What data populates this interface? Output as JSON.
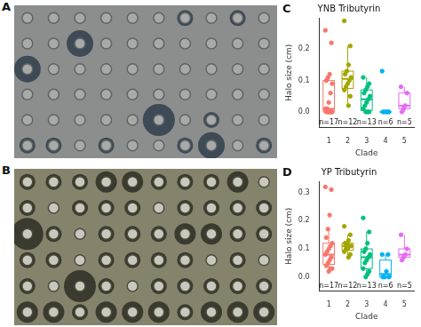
{
  "image_panels": [
    {
      "label": "A"
    },
    {
      "label": "B"
    }
  ],
  "chart_data": [
    {
      "label": "C",
      "type": "box",
      "title": "YNB Tributyrin",
      "x_label": "Clade",
      "y_label": "Halo size (cm)",
      "categories": [
        "1",
        "2",
        "3",
        "4",
        "5"
      ],
      "n_labels": [
        "n=17",
        "n=12",
        "n=13",
        "n=6",
        "n=5"
      ],
      "colors": [
        "#F8766D",
        "#A3A500",
        "#00BF7D",
        "#00B0F6",
        "#E76BF3"
      ],
      "values": [
        [
          0.26,
          0.22,
          0.12,
          0.11,
          0.1,
          0.09,
          0.06,
          0.03,
          0.01,
          0.01,
          0,
          0,
          0,
          0,
          0,
          0,
          0
        ],
        [
          0.29,
          0.21,
          0.15,
          0.13,
          0.12,
          0.11,
          0.1,
          0.09,
          0.08,
          0.07,
          0.05,
          0.02
        ],
        [
          0.11,
          0.09,
          0.08,
          0.07,
          0.06,
          0.05,
          0.04,
          0.03,
          0.02,
          0.01,
          0,
          0,
          0
        ],
        [
          0.13,
          0,
          0,
          0,
          0,
          0
        ],
        [
          0.08,
          0.06,
          0.02,
          0.01,
          0
        ]
      ],
      "box": [
        {
          "min": 0,
          "q1": 0,
          "median": 0.01,
          "q3": 0.1,
          "max": 0.12
        },
        {
          "min": 0.02,
          "q1": 0.075,
          "median": 0.105,
          "q3": 0.13,
          "max": 0.21
        },
        {
          "min": 0,
          "q1": 0.005,
          "median": 0.04,
          "q3": 0.07,
          "max": 0.11
        },
        {
          "min": 0,
          "q1": 0,
          "median": 0,
          "q3": 0,
          "max": 0
        },
        {
          "min": 0,
          "q1": 0.01,
          "median": 0.02,
          "q3": 0.06,
          "max": 0.08
        }
      ],
      "xlim": [
        0.5,
        5.5
      ],
      "ylim": [
        -0.05,
        0.3
      ],
      "yticks": [
        {
          "value": 0,
          "label": "0.0"
        },
        {
          "value": 0.1,
          "label": "0.1"
        },
        {
          "value": 0.2,
          "label": "0.2"
        }
      ],
      "grid": false
    },
    {
      "label": "D",
      "type": "box",
      "title": "YP Tributyrin",
      "x_label": "Clade",
      "y_label": "Halo size (cm)",
      "categories": [
        "1",
        "2",
        "3",
        "4",
        "5"
      ],
      "n_labels": [
        "n=17",
        "n=12",
        "n=13",
        "n=6",
        "n=5"
      ],
      "colors": [
        "#F8766D",
        "#A3A500",
        "#00BF7D",
        "#00B0F6",
        "#E76BF3"
      ],
      "values": [
        [
          0.32,
          0.31,
          0.22,
          0.17,
          0.14,
          0.12,
          0.11,
          0.1,
          0.09,
          0.08,
          0.07,
          0.06,
          0.05,
          0.04,
          0.03,
          0.03,
          0.02
        ],
        [
          0.18,
          0.15,
          0.13,
          0.12,
          0.12,
          0.11,
          0.11,
          0.1,
          0.1,
          0.09,
          0.08,
          0.07
        ],
        [
          0.21,
          0.16,
          0.12,
          0.1,
          0.09,
          0.08,
          0.07,
          0.06,
          0.05,
          0.03,
          0.02,
          0.01,
          0
        ],
        [
          0.08,
          0.08,
          0.02,
          0,
          0,
          0
        ],
        [
          0.15,
          0.1,
          0.08,
          0.07,
          0.06
        ]
      ],
      "box": [
        {
          "min": 0.02,
          "q1": 0.045,
          "median": 0.08,
          "q3": 0.12,
          "max": 0.17
        },
        {
          "min": 0.07,
          "q1": 0.095,
          "median": 0.11,
          "q3": 0.12,
          "max": 0.15
        },
        {
          "min": 0,
          "q1": 0.03,
          "median": 0.07,
          "q3": 0.1,
          "max": 0.16
        },
        {
          "min": 0,
          "q1": 0,
          "median": 0.01,
          "q3": 0.06,
          "max": 0.08
        },
        {
          "min": 0.06,
          "q1": 0.07,
          "median": 0.08,
          "q3": 0.1,
          "max": 0.15
        }
      ],
      "xlim": [
        0.5,
        5.5
      ],
      "ylim": [
        -0.05,
        0.34
      ],
      "yticks": [
        {
          "value": 0,
          "label": "0.0"
        },
        {
          "value": 0.1,
          "label": "0.1"
        },
        {
          "value": 0.2,
          "label": "0.2"
        },
        {
          "value": 0.3,
          "label": "0.3"
        }
      ],
      "grid": false
    }
  ]
}
